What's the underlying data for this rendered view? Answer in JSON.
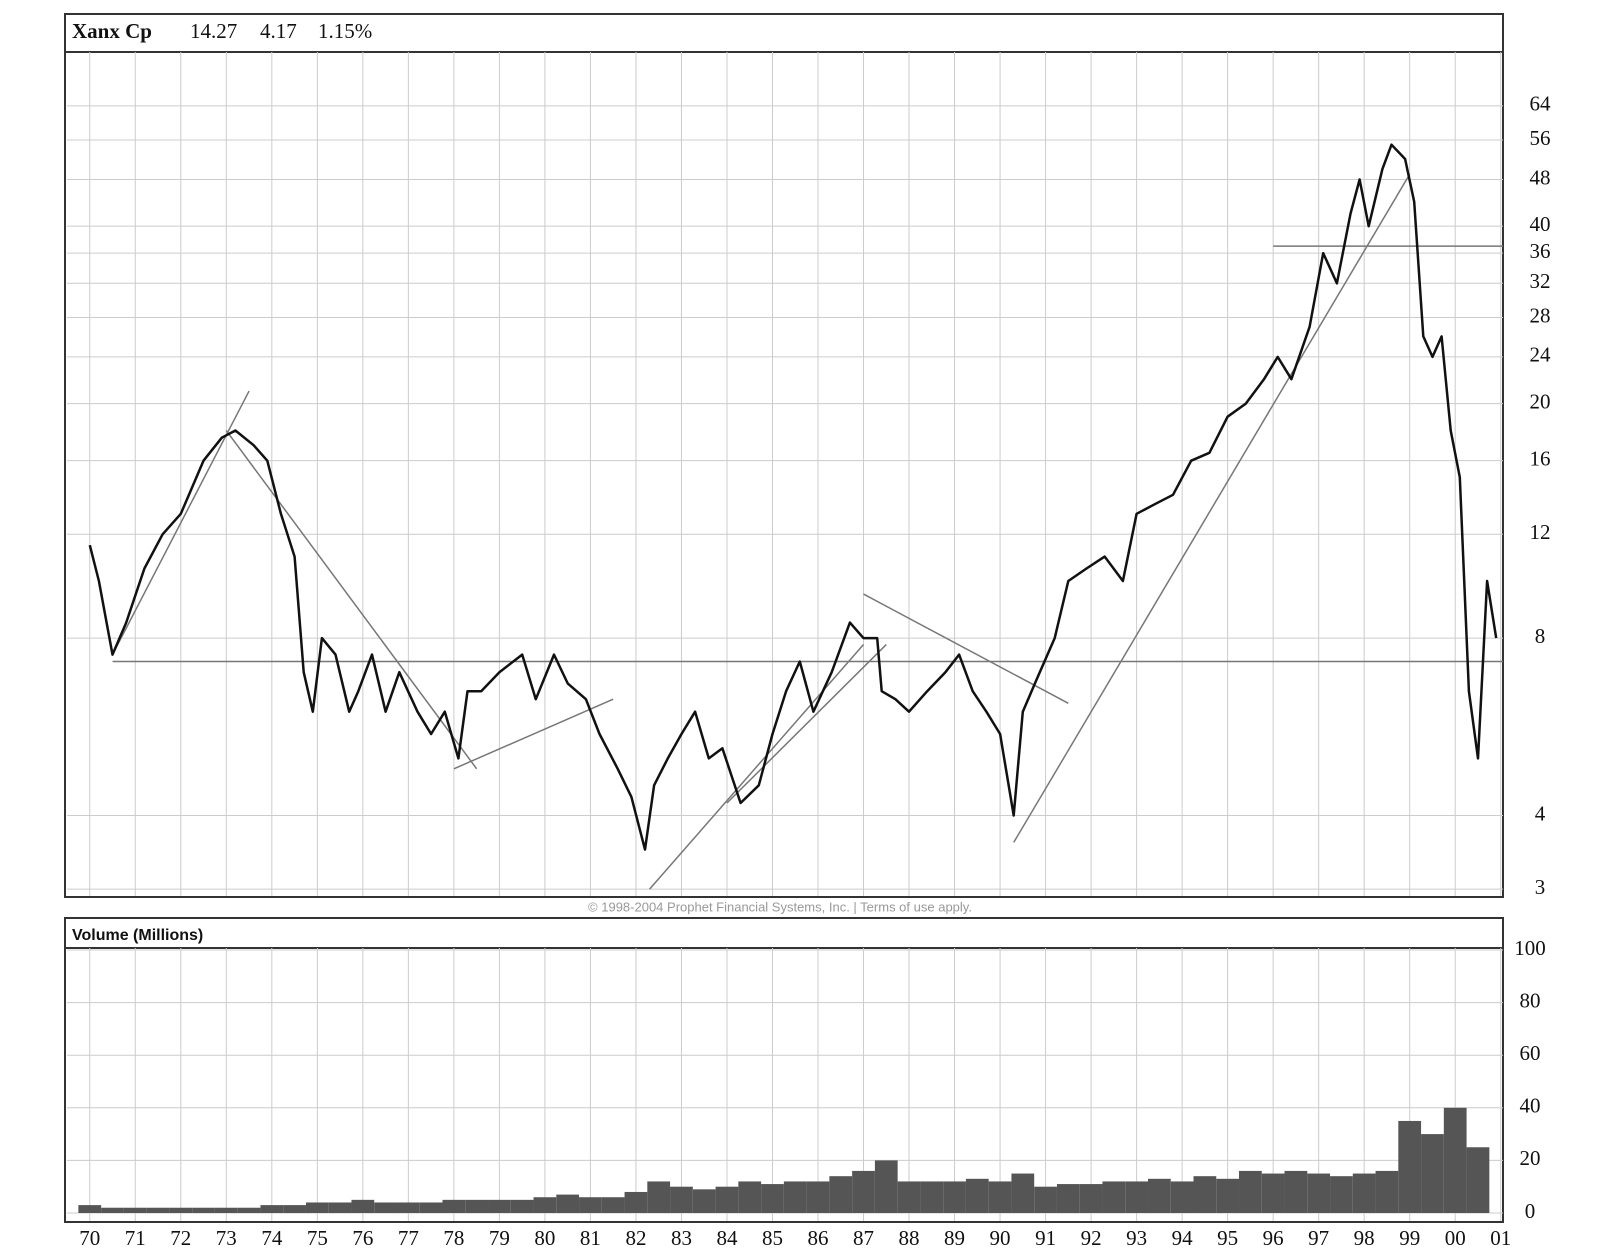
{
  "chart_data": [
    {
      "type": "line",
      "title": "Xanx Cp",
      "header_values": [
        "14.27",
        "4.17",
        "1.15%"
      ],
      "source": "© 1998-2004 Prophet Financial Systems, Inc. | Terms of use apply.",
      "log_scale": true,
      "grid": true,
      "color": "#111111",
      "trend_color": "#777777",
      "x": [
        1970.0,
        1970.2,
        1970.5,
        1970.8,
        1971.2,
        1971.6,
        1972.0,
        1972.5,
        1972.9,
        1973.2,
        1973.6,
        1973.9,
        1974.2,
        1974.5,
        1974.7,
        1974.9,
        1975.1,
        1975.4,
        1975.7,
        1975.9,
        1976.2,
        1976.5,
        1976.8,
        1977.2,
        1977.5,
        1977.8,
        1978.1,
        1978.3,
        1978.6,
        1979.0,
        1979.5,
        1979.8,
        1980.2,
        1980.5,
        1980.9,
        1981.2,
        1981.6,
        1981.9,
        1982.2,
        1982.4,
        1982.7,
        1983.0,
        1983.3,
        1983.6,
        1983.9,
        1984.3,
        1984.7,
        1985.0,
        1985.3,
        1985.6,
        1985.9,
        1986.3,
        1986.7,
        1987.0,
        1987.3,
        1987.4,
        1987.7,
        1988.0,
        1988.4,
        1988.8,
        1989.1,
        1989.4,
        1989.7,
        1990.0,
        1990.3,
        1990.5,
        1990.8,
        1991.2,
        1991.5,
        1991.9,
        1992.3,
        1992.7,
        1993.0,
        1993.4,
        1993.8,
        1994.2,
        1994.6,
        1995.0,
        1995.4,
        1995.8,
        1996.1,
        1996.4,
        1996.8,
        1997.1,
        1997.4,
        1997.7,
        1997.9,
        1998.1,
        1998.4,
        1998.6,
        1998.9,
        1999.1,
        1999.3,
        1999.5,
        1999.7,
        1999.9,
        2000.1,
        2000.3,
        2000.5,
        2000.7,
        2000.9
      ],
      "values": [
        11.5,
        10,
        7.5,
        8.5,
        10.5,
        12,
        13,
        16,
        17.5,
        18,
        17,
        16,
        13,
        11,
        7,
        6,
        8,
        7.5,
        6,
        6.5,
        7.5,
        6,
        7,
        6,
        5.5,
        6,
        5,
        6.5,
        6.5,
        7,
        7.5,
        6.3,
        7.5,
        6.7,
        6.3,
        5.5,
        4.8,
        4.3,
        3.5,
        4.5,
        5,
        5.5,
        6,
        5,
        5.2,
        4.2,
        4.5,
        5.5,
        6.5,
        7.3,
        6,
        7,
        8.5,
        8,
        8,
        6.5,
        6.3,
        6,
        6.5,
        7,
        7.5,
        6.5,
        6,
        5.5,
        4,
        6,
        6.8,
        8,
        10,
        10.5,
        11,
        10,
        13,
        13.5,
        14,
        16,
        16.5,
        19,
        20,
        22,
        24,
        22,
        27,
        36,
        32,
        42,
        48,
        40,
        50,
        55,
        52,
        44,
        26,
        24,
        26,
        18,
        15,
        6.5,
        5,
        10,
        8
      ],
      "trend_lines": [
        {
          "x": [
            1970.5,
            1973.5
          ],
          "y": [
            7.5,
            21
          ]
        },
        {
          "x": [
            1973.0,
            1978.5
          ],
          "y": [
            18,
            4.8
          ]
        },
        {
          "x": [
            1978.0,
            1981.5
          ],
          "y": [
            4.8,
            6.3
          ]
        },
        {
          "x": [
            1982.3,
            1987.0
          ],
          "y": [
            3,
            7.8
          ]
        },
        {
          "x": [
            1984.0,
            1987.5
          ],
          "y": [
            4.2,
            7.8
          ]
        },
        {
          "x": [
            1987.0,
            1991.5
          ],
          "y": [
            9.5,
            6.2
          ]
        },
        {
          "x": [
            1990.3,
            1999.0
          ],
          "y": [
            3.6,
            49
          ]
        },
        {
          "x": [
            1970.5,
            2001.05
          ],
          "y": [
            7.3,
            7.3
          ]
        },
        {
          "x": [
            1996.0,
            2001.05
          ],
          "y": [
            37,
            37
          ]
        }
      ],
      "ylim": [
        2.92,
        79
      ],
      "yticks": [
        3,
        4,
        8,
        12,
        16,
        20,
        24,
        28,
        32,
        36,
        40,
        48,
        56,
        64
      ]
    },
    {
      "type": "bar",
      "title": "Volume (Millions)",
      "grid": true,
      "color": "#555555",
      "x": [
        1970.0,
        1970.5,
        1971.0,
        1971.5,
        1972.0,
        1972.5,
        1973.0,
        1973.5,
        1974.0,
        1974.5,
        1975.0,
        1975.5,
        1976.0,
        1976.5,
        1977.0,
        1977.5,
        1978.0,
        1978.5,
        1979.0,
        1979.5,
        1980.0,
        1980.5,
        1981.0,
        1981.5,
        1982.0,
        1982.5,
        1983.0,
        1983.5,
        1984.0,
        1984.5,
        1985.0,
        1985.5,
        1986.0,
        1986.5,
        1987.0,
        1987.5,
        1988.0,
        1988.5,
        1989.0,
        1989.5,
        1990.0,
        1990.5,
        1991.0,
        1991.5,
        1992.0,
        1992.5,
        1993.0,
        1993.5,
        1994.0,
        1994.5,
        1995.0,
        1995.5,
        1996.0,
        1996.5,
        1997.0,
        1997.5,
        1998.0,
        1998.5,
        1999.0,
        1999.5,
        2000.0,
        2000.5
      ],
      "values": [
        3,
        2,
        2,
        2,
        2,
        2,
        2,
        2,
        3,
        3,
        4,
        4,
        5,
        4,
        4,
        4,
        5,
        5,
        5,
        5,
        6,
        7,
        6,
        6,
        8,
        12,
        10,
        9,
        10,
        12,
        11,
        12,
        12,
        14,
        16,
        20,
        12,
        12,
        12,
        13,
        12,
        15,
        10,
        11,
        11,
        12,
        12,
        13,
        12,
        14,
        13,
        16,
        15,
        16,
        15,
        14,
        15,
        16,
        35,
        30,
        40,
        25
      ],
      "xlim": [
        1969.5,
        2001.05
      ],
      "xticks": [
        {
          "value": 1970,
          "label": "70"
        },
        {
          "value": 1971,
          "label": "71"
        },
        {
          "value": 1972,
          "label": "72"
        },
        {
          "value": 1973,
          "label": "73"
        },
        {
          "value": 1974,
          "label": "74"
        },
        {
          "value": 1975,
          "label": "75"
        },
        {
          "value": 1976,
          "label": "76"
        },
        {
          "value": 1977,
          "label": "77"
        },
        {
          "value": 1978,
          "label": "78"
        },
        {
          "value": 1979,
          "label": "79"
        },
        {
          "value": 1980,
          "label": "80"
        },
        {
          "value": 1981,
          "label": "81"
        },
        {
          "value": 1982,
          "label": "82"
        },
        {
          "value": 1983,
          "label": "83"
        },
        {
          "value": 1984,
          "label": "84"
        },
        {
          "value": 1985,
          "label": "85"
        },
        {
          "value": 1986,
          "label": "86"
        },
        {
          "value": 1987,
          "label": "87"
        },
        {
          "value": 1988,
          "label": "88"
        },
        {
          "value": 1989,
          "label": "89"
        },
        {
          "value": 1990,
          "label": "90"
        },
        {
          "value": 1991,
          "label": "91"
        },
        {
          "value": 1992,
          "label": "92"
        },
        {
          "value": 1993,
          "label": "93"
        },
        {
          "value": 1994,
          "label": "94"
        },
        {
          "value": 1995,
          "label": "95"
        },
        {
          "value": 1996,
          "label": "96"
        },
        {
          "value": 1997,
          "label": "97"
        },
        {
          "value": 1998,
          "label": "98"
        },
        {
          "value": 1999,
          "label": "99"
        },
        {
          "value": 2000,
          "label": "00"
        },
        {
          "value": 2001,
          "label": "01"
        }
      ],
      "ylim": [
        0,
        100
      ],
      "yticks": [
        0,
        20,
        40,
        60,
        80,
        100
      ]
    }
  ]
}
